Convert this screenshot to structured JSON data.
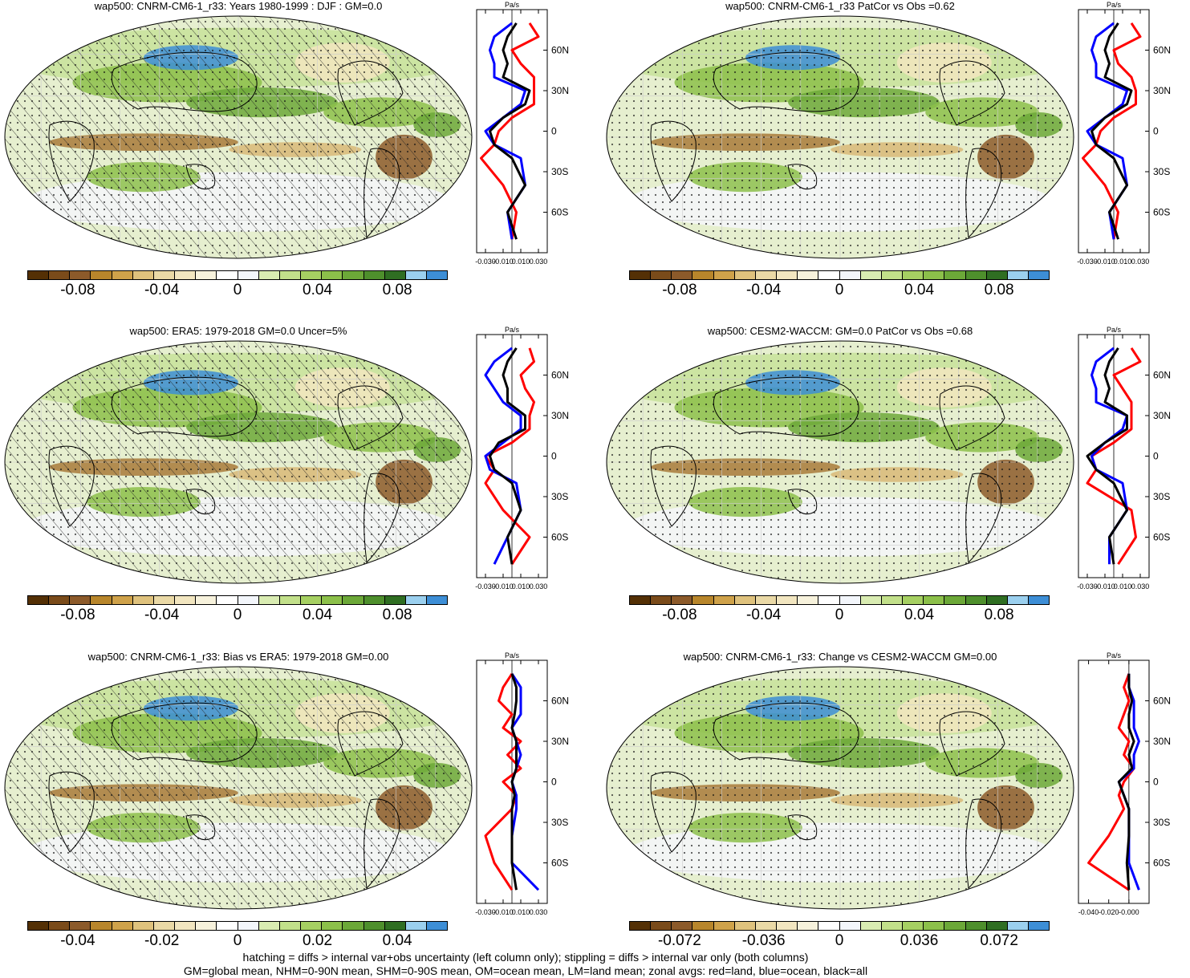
{
  "colorbar_colors": [
    "#543005",
    "#7a4b1a",
    "#8c5a2a",
    "#b8862b",
    "#cfa24a",
    "#dfc27d",
    "#ead9a6",
    "#f2e6c0",
    "#f7f2dc",
    "#ffffff",
    "#f3f6fb",
    "#d9ecb2",
    "#c2e08a",
    "#a6d062",
    "#8cc04a",
    "#6ca838",
    "#4e8f2c",
    "#2f6e22",
    "#9bd0ef",
    "#3d8ed6"
  ],
  "line_colors": {
    "land": "#ff0000",
    "ocean": "#0000ff",
    "all": "#000000"
  },
  "panels": [
    {
      "title": "wap500: CNRM-CM6-1_r33: Years 1980-1999 : DJF : GM=0.0",
      "cbar_ticks": [
        "-0.08",
        "-0.04",
        "0",
        "0.04",
        "0.08"
      ],
      "zonal_unit": "Pa/s",
      "zonal_xticks": [
        "-0.030",
        "-0.010",
        "0.010",
        "0.030"
      ],
      "lat_ticks": [
        "60N",
        "30N",
        "0",
        "30S",
        "60S"
      ]
    },
    {
      "title": "wap500: CNRM-CM6-1_r33 PatCor vs Obs =0.62",
      "cbar_ticks": [
        "-0.08",
        "-0.04",
        "0",
        "0.04",
        "0.08"
      ],
      "zonal_unit": "Pa/s",
      "zonal_xticks": [
        "-0.030",
        "-0.010",
        "0.010",
        "0.030"
      ],
      "lat_ticks": [
        "60N",
        "30N",
        "0",
        "30S",
        "60S"
      ]
    },
    {
      "title": "wap500: ERA5: 1979-2018 GM=0.0 Uncer=5%",
      "cbar_ticks": [
        "-0.08",
        "-0.04",
        "0",
        "0.04",
        "0.08"
      ],
      "zonal_unit": "Pa/s",
      "zonal_xticks": [
        "-0.030",
        "-0.010",
        "0.010",
        "0.030"
      ],
      "lat_ticks": [
        "60N",
        "30N",
        "0",
        "30S",
        "60S"
      ]
    },
    {
      "title": "wap500: CESM2-WACCM: GM=0.0 PatCor vs Obs =0.68",
      "cbar_ticks": [
        "-0.08",
        "-0.04",
        "0",
        "0.04",
        "0.08"
      ],
      "zonal_unit": "Pa/s",
      "zonal_xticks": [
        "-0.030",
        "-0.010",
        "0.010",
        "0.030"
      ],
      "lat_ticks": [
        "60N",
        "30N",
        "0",
        "30S",
        "60S"
      ]
    },
    {
      "title": "wap500: CNRM-CM6-1_r33: Bias vs ERA5: 1979-2018 GM=0.00",
      "cbar_ticks": [
        "-0.04",
        "-0.02",
        "0",
        "0.02",
        "0.04"
      ],
      "zonal_unit": "Pa/s",
      "zonal_xticks": [
        "-0.030",
        "-0.010",
        "0.010",
        "0.030"
      ],
      "lat_ticks": [
        "60N",
        "30N",
        "0",
        "30S",
        "60S"
      ]
    },
    {
      "title": "wap500: CNRM-CM6-1_r33: Change vs CESM2-WACCM GM=0.00",
      "cbar_ticks": [
        "-0.072",
        "-0.036",
        "0",
        "0.036",
        "0.072"
      ],
      "zonal_unit": "Pa/s",
      "zonal_xticks": [
        "-0.040",
        "-0.020",
        "-0.000"
      ],
      "lat_ticks": [
        "60N",
        "30N",
        "0",
        "30S",
        "60S"
      ]
    }
  ],
  "footer": {
    "line1": "hatching = diffs > internal var+obs uncertainty (left column only); stippling = diffs > internal var only (both columns)",
    "line2": "GM=global mean, NHM=0-90N mean, SHM=0-90S mean, OM=ocean mean, LM=land mean; zonal avgs: red=land, blue=ocean, black=all"
  },
  "chart_data": [
    {
      "type": "line",
      "title": "wap500: CNRM-CM6-1_r33: Years 1980-1999 : DJF : GM=0.0",
      "xlabel": "Pa/s",
      "ylabel": "",
      "xlim": [
        -0.04,
        0.04
      ],
      "ylim": [
        -90,
        90
      ],
      "x": [
        -80,
        -60,
        -40,
        -20,
        -10,
        0,
        10,
        20,
        30,
        40,
        50,
        60,
        70,
        80
      ],
      "series": [
        {
          "name": "land",
          "values": [
            0.0,
            0.005,
            -0.01,
            -0.035,
            -0.02,
            -0.015,
            0.0,
            0.025,
            0.025,
            0.025,
            0.01,
            0.0,
            0.03,
            0.02
          ]
        },
        {
          "name": "ocean",
          "values": [
            0.0,
            -0.005,
            0.015,
            0.01,
            -0.02,
            -0.03,
            -0.01,
            0.01,
            0.015,
            -0.02,
            -0.02,
            -0.025,
            -0.02,
            0.0
          ]
        },
        {
          "name": "all",
          "values": [
            0.005,
            -0.005,
            0.015,
            0.0,
            -0.02,
            -0.025,
            -0.01,
            0.015,
            0.02,
            -0.01,
            -0.005,
            -0.01,
            -0.005,
            0.005
          ]
        }
      ]
    },
    {
      "type": "line",
      "title": "wap500: CNRM-CM6-1_r33 PatCor vs Obs =0.62",
      "xlabel": "Pa/s",
      "ylabel": "",
      "xlim": [
        -0.04,
        0.04
      ],
      "ylim": [
        -90,
        90
      ],
      "x": [
        -80,
        -60,
        -40,
        -20,
        -10,
        0,
        10,
        20,
        30,
        40,
        50,
        60,
        70,
        80
      ],
      "series": [
        {
          "name": "land",
          "values": [
            0.0,
            0.005,
            -0.01,
            -0.035,
            -0.02,
            -0.015,
            0.0,
            0.025,
            0.025,
            0.02,
            0.005,
            0.0,
            0.03,
            0.02
          ]
        },
        {
          "name": "ocean",
          "values": [
            0.0,
            -0.005,
            0.015,
            0.01,
            -0.02,
            -0.03,
            -0.01,
            0.01,
            0.015,
            -0.02,
            -0.02,
            -0.025,
            -0.02,
            0.0
          ]
        },
        {
          "name": "all",
          "values": [
            0.005,
            -0.005,
            0.015,
            0.0,
            -0.02,
            -0.025,
            -0.01,
            0.015,
            0.02,
            -0.01,
            -0.005,
            -0.01,
            -0.005,
            0.005
          ]
        }
      ]
    },
    {
      "type": "line",
      "title": "wap500: ERA5: 1979-2018 GM=0.0 Uncer=5%",
      "xlabel": "Pa/s",
      "ylabel": "",
      "xlim": [
        -0.04,
        0.04
      ],
      "ylim": [
        -90,
        90
      ],
      "x": [
        -80,
        -60,
        -40,
        -20,
        -10,
        0,
        10,
        20,
        30,
        40,
        50,
        60,
        70,
        80
      ],
      "series": [
        {
          "name": "land",
          "values": [
            0.0,
            0.02,
            -0.01,
            -0.03,
            -0.02,
            -0.03,
            0.0,
            0.02,
            0.02,
            0.025,
            0.015,
            0.01,
            0.025,
            0.02
          ]
        },
        {
          "name": "ocean",
          "values": [
            -0.02,
            -0.005,
            0.01,
            0.005,
            -0.025,
            -0.03,
            -0.01,
            0.01,
            0.01,
            -0.01,
            -0.02,
            -0.03,
            -0.02,
            0.0
          ]
        },
        {
          "name": "all",
          "values": [
            0.0,
            -0.005,
            0.01,
            0.0,
            -0.02,
            -0.025,
            -0.015,
            0.015,
            0.015,
            -0.005,
            -0.005,
            -0.01,
            -0.005,
            0.005
          ]
        }
      ]
    },
    {
      "type": "line",
      "title": "wap500: CESM2-WACCM: GM=0.0 PatCor vs Obs =0.68",
      "xlabel": "Pa/s",
      "ylabel": "",
      "xlim": [
        -0.04,
        0.04
      ],
      "ylim": [
        -90,
        90
      ],
      "x": [
        -80,
        -60,
        -40,
        -20,
        -10,
        0,
        10,
        20,
        30,
        40,
        50,
        60,
        70,
        80
      ],
      "series": [
        {
          "name": "land",
          "values": [
            0.005,
            0.025,
            0.02,
            -0.03,
            -0.02,
            -0.025,
            0.0,
            0.02,
            0.02,
            0.02,
            0.01,
            0.0,
            0.03,
            0.02
          ]
        },
        {
          "name": "ocean",
          "values": [
            -0.005,
            -0.005,
            0.015,
            0.01,
            -0.02,
            -0.025,
            -0.01,
            0.01,
            0.015,
            -0.02,
            -0.02,
            -0.025,
            -0.02,
            0.0
          ]
        },
        {
          "name": "all",
          "values": [
            0.0,
            -0.005,
            0.015,
            0.0,
            -0.02,
            -0.03,
            -0.01,
            0.015,
            0.015,
            -0.01,
            -0.005,
            -0.01,
            -0.005,
            0.005
          ]
        }
      ]
    },
    {
      "type": "line",
      "title": "wap500: CNRM-CM6-1_r33: Bias vs ERA5: 1979-2018 GM=0.00",
      "xlabel": "Pa/s",
      "ylabel": "",
      "xlim": [
        -0.04,
        0.04
      ],
      "ylim": [
        -90,
        90
      ],
      "x": [
        -80,
        -60,
        -40,
        -20,
        -10,
        0,
        10,
        20,
        30,
        40,
        50,
        60,
        70,
        80
      ],
      "series": [
        {
          "name": "land",
          "values": [
            0.0,
            -0.02,
            -0.03,
            0.0,
            0.005,
            -0.01,
            0.01,
            -0.005,
            0.01,
            -0.01,
            0.0,
            -0.015,
            -0.01,
            0.0
          ]
        },
        {
          "name": "ocean",
          "values": [
            0.03,
            0.0,
            0.0,
            0.005,
            0.005,
            0.0,
            0.005,
            0.01,
            0.005,
            0.0,
            0.01,
            0.01,
            0.01,
            0.0
          ]
        },
        {
          "name": "all",
          "values": [
            0.005,
            0.0,
            0.0,
            0.0,
            0.003,
            0.0,
            0.005,
            0.005,
            0.005,
            0.0,
            0.003,
            0.005,
            0.005,
            0.0
          ]
        }
      ]
    },
    {
      "type": "line",
      "title": "wap500: CNRM-CM6-1_r33: Change vs CESM2-WACCM GM=0.00",
      "xlabel": "Pa/s",
      "ylabel": "",
      "xlim": [
        -0.05,
        0.02
      ],
      "ylim": [
        -90,
        90
      ],
      "x": [
        -80,
        -60,
        -40,
        -20,
        -10,
        0,
        10,
        20,
        30,
        40,
        50,
        60,
        70,
        80
      ],
      "series": [
        {
          "name": "land",
          "values": [
            0.0,
            -0.04,
            -0.02,
            -0.005,
            -0.01,
            -0.005,
            0.005,
            -0.005,
            0.0,
            -0.01,
            -0.005,
            0.0,
            -0.005,
            0.0
          ]
        },
        {
          "name": "ocean",
          "values": [
            0.01,
            0.0,
            0.0,
            0.0,
            -0.005,
            -0.01,
            0.005,
            0.005,
            0.01,
            0.005,
            0.005,
            0.005,
            0.0,
            0.0
          ]
        },
        {
          "name": "all",
          "values": [
            0.0,
            -0.002,
            0.0,
            0.0,
            -0.005,
            -0.01,
            0.003,
            0.0,
            0.005,
            0.0,
            0.0,
            0.003,
            0.0,
            0.0
          ]
        }
      ]
    }
  ]
}
